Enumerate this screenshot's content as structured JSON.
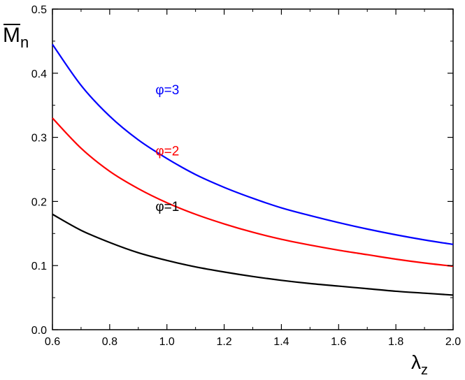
{
  "chart_data": {
    "type": "line",
    "xlabel": {
      "main": "λ",
      "sub": "z"
    },
    "ylabel": {
      "main": "M",
      "sub": "n",
      "overline": true
    },
    "xlim": [
      0.6,
      2.0
    ],
    "ylim": [
      0.0,
      0.5
    ],
    "x_ticks": [
      "0.6",
      "0.8",
      "1.0",
      "1.2",
      "1.4",
      "1.6",
      "1.8",
      "2.0"
    ],
    "y_ticks": [
      "0.0",
      "0.1",
      "0.2",
      "0.3",
      "0.4",
      "0.5"
    ],
    "grid": false,
    "legend": "none",
    "series": [
      {
        "name": "φ=1",
        "color": "#000000",
        "x": [
          0.6,
          0.7,
          0.8,
          0.9,
          1.0,
          1.1,
          1.2,
          1.3,
          1.4,
          1.5,
          1.6,
          1.7,
          1.8,
          1.9,
          2.0
        ],
        "values": [
          0.18,
          0.155,
          0.136,
          0.12,
          0.108,
          0.098,
          0.09,
          0.083,
          0.077,
          0.072,
          0.068,
          0.064,
          0.06,
          0.057,
          0.054
        ]
      },
      {
        "name": "φ=2",
        "color": "#ff0000",
        "x": [
          0.6,
          0.7,
          0.8,
          0.9,
          1.0,
          1.1,
          1.2,
          1.3,
          1.4,
          1.5,
          1.6,
          1.7,
          1.8,
          1.9,
          2.0
        ],
        "values": [
          0.33,
          0.283,
          0.247,
          0.22,
          0.198,
          0.18,
          0.165,
          0.152,
          0.141,
          0.132,
          0.124,
          0.117,
          0.11,
          0.104,
          0.099
        ]
      },
      {
        "name": "φ=3",
        "color": "#0000ff",
        "x": [
          0.6,
          0.7,
          0.8,
          0.9,
          1.0,
          1.1,
          1.2,
          1.3,
          1.4,
          1.5,
          1.6,
          1.7,
          1.8,
          1.9,
          2.0
        ],
        "values": [
          0.445,
          0.381,
          0.333,
          0.296,
          0.267,
          0.242,
          0.222,
          0.205,
          0.19,
          0.178,
          0.167,
          0.157,
          0.148,
          0.14,
          0.133
        ]
      }
    ]
  }
}
